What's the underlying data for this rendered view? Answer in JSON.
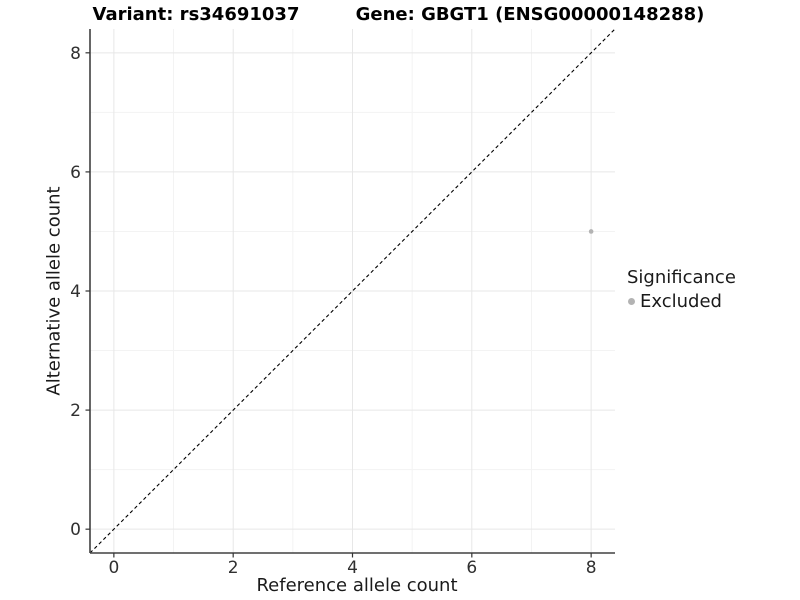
{
  "titles": {
    "left": "Variant: rs34691037",
    "right": "Gene: GBGT1 (ENSG00000148288)"
  },
  "legend": {
    "title": "Significance",
    "items": [
      {
        "label": "Excluded",
        "color": "#b3b3b3"
      }
    ]
  },
  "chart_data": {
    "type": "scatter",
    "title_left": "Variant: rs34691037",
    "title_right": "Gene: GBGT1 (ENSG00000148288)",
    "xlabel": "Reference allele count",
    "ylabel": "Alternative allele count",
    "xlim": [
      -0.4,
      8.4
    ],
    "ylim": [
      -0.4,
      8.4
    ],
    "x_ticks": [
      0,
      2,
      4,
      6,
      8
    ],
    "y_ticks": [
      0,
      2,
      4,
      6,
      8
    ],
    "x_minor_ticks": [
      1,
      3,
      5,
      7
    ],
    "y_minor_ticks": [
      1,
      3,
      5,
      7
    ],
    "grid": "major+minor",
    "legend_position": "right",
    "legend_title": "Significance",
    "reference_line": {
      "type": "identity",
      "style": "dashed",
      "color": "#000000"
    },
    "series": [
      {
        "name": "Excluded",
        "color": "#b3b3b3",
        "points": [
          {
            "x": 8,
            "y": 5
          }
        ]
      }
    ]
  },
  "colors": {
    "background": "#ffffff",
    "grid_major": "#e7e7e7",
    "grid_minor": "#f3f3f3",
    "axis_line": "#404040",
    "tick_mark": "#333333",
    "tick_text": "#303030",
    "point": "#b3b3b3",
    "reference_line": "#000000"
  }
}
